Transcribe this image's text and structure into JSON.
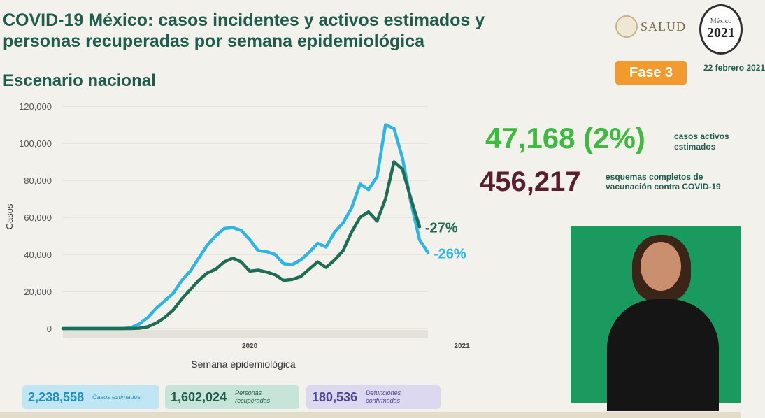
{
  "header": {
    "title": "COVID-19 México: casos incidentes y activos estimados y personas recuperadas por semana epidemiológica",
    "subtitle": "Escenario nacional",
    "logo_text": "SALUD",
    "logo_2021_top": "México",
    "logo_2021_year": "2021",
    "phase_badge": "Fase 3",
    "date": "22 febrero 2021"
  },
  "stats": {
    "active_value": "47,168 (2%)",
    "active_label": "casos activos estimados",
    "vaccination_value": "456,217",
    "vaccination_label": "esquemas completos de vacunación contra COVID-19"
  },
  "summary": {
    "estimated_cases": {
      "value": "2,238,558",
      "label": "Casos estimados"
    },
    "recovered": {
      "value": "1,602,024",
      "label": "Personas recuperadas"
    },
    "deaths": {
      "value": "180,536",
      "label": "Defunciones confirmadas"
    }
  },
  "colors": {
    "incident_series": "#2eb6e2",
    "active_series": "#1d6e54",
    "title": "#1f5c4d",
    "active_stat": "#3dbb3f",
    "vaccination_stat": "#5a1f2e",
    "phase_badge": "#f29a2e"
  },
  "chart_data": {
    "type": "line",
    "xlabel": "Semana epidemiológica",
    "ylabel": "Casos",
    "ylim": [
      0,
      120000
    ],
    "yticks": [
      "0",
      "20,000",
      "40,000",
      "60,000",
      "80,000",
      "100,000",
      "120,000"
    ],
    "year_labels": [
      {
        "label": "2020",
        "week_index": 22
      },
      {
        "label": "2021",
        "week_index": 47
      }
    ],
    "grid": true,
    "series": [
      {
        "end_label": "-26%",
        "color": "#2eb6e2",
        "values": [
          0,
          0,
          0,
          0,
          0,
          0,
          0,
          0,
          500,
          2500,
          6000,
          11000,
          15000,
          19000,
          26000,
          31000,
          38000,
          45000,
          50000,
          54000,
          54500,
          53000,
          48000,
          42000,
          41500,
          40000,
          35000,
          34500,
          37000,
          41000,
          46000,
          44000,
          52000,
          57000,
          65000,
          78000,
          75000,
          82000,
          110000,
          108000,
          92000,
          68000,
          48000,
          41000
        ]
      },
      {
        "end_label": "-27%",
        "color": "#1d6e54",
        "values": [
          0,
          0,
          0,
          0,
          0,
          0,
          0,
          0,
          0,
          200,
          1000,
          3000,
          6000,
          10000,
          16000,
          21000,
          26000,
          30000,
          32000,
          36000,
          38000,
          36000,
          31000,
          31500,
          30500,
          29000,
          26000,
          26500,
          28000,
          32000,
          36000,
          33000,
          37000,
          42000,
          52000,
          60000,
          63000,
          58000,
          70000,
          90000,
          86000,
          70000,
          55000
        ]
      }
    ]
  }
}
